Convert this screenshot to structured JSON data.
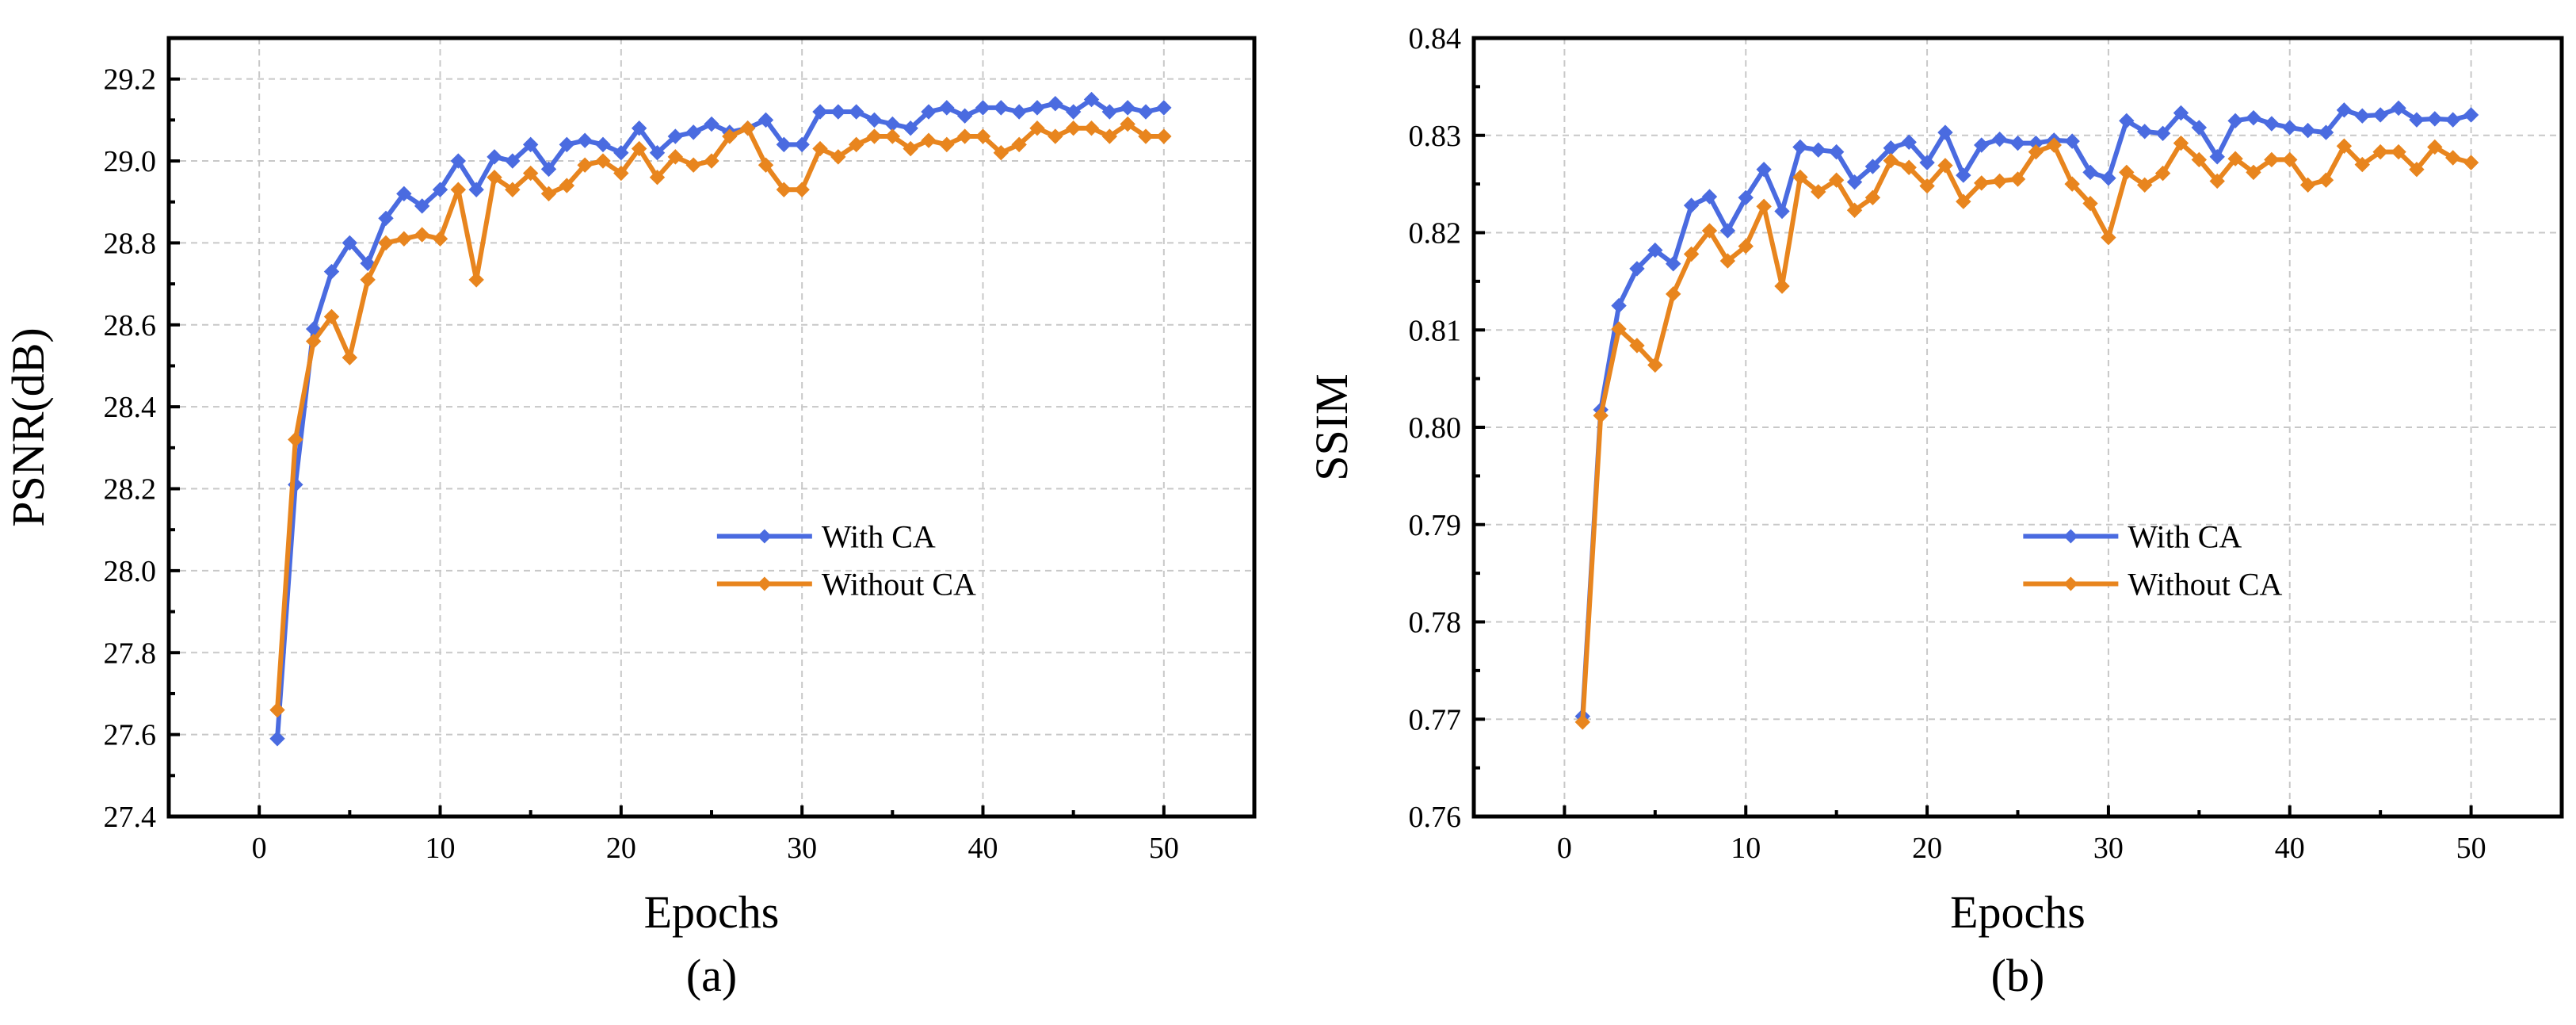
{
  "colors": {
    "with_ca": "#4a6be0",
    "without_ca": "#e8851e"
  },
  "chart_data": [
    {
      "type": "line",
      "id": "a",
      "caption": "(a)",
      "xlabel": "Epochs",
      "ylabel": "PSNR(dB)",
      "xlim": [
        -5,
        55
      ],
      "ylim": [
        27.4,
        29.3
      ],
      "xticks": [
        0,
        10,
        20,
        30,
        40,
        50
      ],
      "xtick_labels": [
        "0",
        "10",
        "20",
        "30",
        "40",
        "50"
      ],
      "yticks": [
        27.4,
        27.6,
        27.8,
        28.0,
        28.2,
        28.4,
        28.6,
        28.8,
        29.0,
        29.2
      ],
      "ytick_labels": [
        "27.4",
        "27.6",
        "27.8",
        "28.0",
        "28.2",
        "28.4",
        "28.6",
        "28.8",
        "29.0",
        "29.2"
      ],
      "yminor": [
        27.5,
        27.7,
        27.9,
        28.1,
        28.3,
        28.5,
        28.7,
        28.9,
        29.1,
        29.3
      ],
      "grid": true,
      "legend_position": "center-right",
      "x": [
        1,
        2,
        3,
        4,
        5,
        6,
        7,
        8,
        9,
        10,
        11,
        12,
        13,
        14,
        15,
        16,
        17,
        18,
        19,
        20,
        21,
        22,
        23,
        24,
        25,
        26,
        27,
        28,
        29,
        30,
        31,
        32,
        33,
        34,
        35,
        36,
        37,
        38,
        39,
        40,
        41,
        42,
        43,
        44,
        45,
        46,
        47,
        48,
        49,
        50
      ],
      "series": [
        {
          "name": "With CA",
          "color_key": "with_ca",
          "values": [
            27.59,
            28.21,
            28.59,
            28.73,
            28.8,
            28.75,
            28.86,
            28.92,
            28.89,
            28.93,
            29.0,
            28.93,
            29.01,
            29.0,
            29.04,
            28.98,
            29.04,
            29.05,
            29.04,
            29.02,
            29.08,
            29.02,
            29.06,
            29.07,
            29.09,
            29.07,
            29.08,
            29.1,
            29.04,
            29.04,
            29.12,
            29.12,
            29.12,
            29.1,
            29.09,
            29.08,
            29.12,
            29.13,
            29.11,
            29.13,
            29.13,
            29.12,
            29.13,
            29.14,
            29.12,
            29.15,
            29.12,
            29.13,
            29.12,
            29.13
          ]
        },
        {
          "name": "Without CA",
          "color_key": "without_ca",
          "values": [
            27.66,
            28.32,
            28.56,
            28.62,
            28.52,
            28.71,
            28.8,
            28.81,
            28.82,
            28.81,
            28.93,
            28.71,
            28.96,
            28.93,
            28.97,
            28.92,
            28.94,
            28.99,
            29.0,
            28.97,
            29.03,
            28.96,
            29.01,
            28.99,
            29.0,
            29.06,
            29.08,
            28.99,
            28.93,
            28.93,
            29.03,
            29.01,
            29.04,
            29.06,
            29.06,
            29.03,
            29.05,
            29.04,
            29.06,
            29.06,
            29.02,
            29.04,
            29.08,
            29.06,
            29.08,
            29.08,
            29.06,
            29.09,
            29.06,
            29.06
          ]
        }
      ]
    },
    {
      "type": "line",
      "id": "b",
      "caption": "(b)",
      "xlabel": "Epochs",
      "ylabel": "SSIM",
      "xlim": [
        -5,
        55
      ],
      "ylim": [
        0.76,
        0.84
      ],
      "xticks": [
        0,
        10,
        20,
        30,
        40,
        50
      ],
      "xtick_labels": [
        "0",
        "10",
        "20",
        "30",
        "40",
        "50"
      ],
      "yticks": [
        0.76,
        0.77,
        0.78,
        0.79,
        0.8,
        0.81,
        0.82,
        0.83,
        0.84
      ],
      "ytick_labels": [
        "0.76",
        "0.77",
        "0.78",
        "0.79",
        "0.80",
        "0.81",
        "0.82",
        "0.83",
        "0.84"
      ],
      "yminor": [
        0.765,
        0.775,
        0.785,
        0.795,
        0.805,
        0.815,
        0.825,
        0.835
      ],
      "grid": true,
      "legend_position": "center-right",
      "x": [
        1,
        2,
        3,
        4,
        5,
        6,
        7,
        8,
        9,
        10,
        11,
        12,
        13,
        14,
        15,
        16,
        17,
        18,
        19,
        20,
        21,
        22,
        23,
        24,
        25,
        26,
        27,
        28,
        29,
        30,
        31,
        32,
        33,
        34,
        35,
        36,
        37,
        38,
        39,
        40,
        41,
        42,
        43,
        44,
        45,
        46,
        47,
        48,
        49,
        50
      ],
      "series": [
        {
          "name": "With CA",
          "color_key": "with_ca",
          "values": [
            0.7703,
            0.8018,
            0.8125,
            0.8163,
            0.8182,
            0.8168,
            0.8228,
            0.8237,
            0.8202,
            0.8236,
            0.8265,
            0.8222,
            0.8288,
            0.8285,
            0.8283,
            0.8252,
            0.8268,
            0.8287,
            0.8293,
            0.8272,
            0.8303,
            0.8259,
            0.829,
            0.8296,
            0.8292,
            0.8292,
            0.8295,
            0.8294,
            0.8262,
            0.8256,
            0.8315,
            0.8304,
            0.8302,
            0.8323,
            0.8308,
            0.8278,
            0.8315,
            0.8318,
            0.8312,
            0.8308,
            0.8305,
            0.8303,
            0.8326,
            0.832,
            0.8321,
            0.8328,
            0.8316,
            0.8317,
            0.8316,
            0.8321
          ]
        },
        {
          "name": "Without CA",
          "color_key": "without_ca",
          "values": [
            0.7697,
            0.8012,
            0.8101,
            0.8084,
            0.8064,
            0.8137,
            0.8178,
            0.8202,
            0.8171,
            0.8186,
            0.8227,
            0.8145,
            0.8257,
            0.8242,
            0.8254,
            0.8223,
            0.8236,
            0.8274,
            0.8267,
            0.8248,
            0.8269,
            0.8232,
            0.8251,
            0.8253,
            0.8255,
            0.8283,
            0.829,
            0.825,
            0.823,
            0.8195,
            0.8262,
            0.8249,
            0.8261,
            0.8292,
            0.8275,
            0.8253,
            0.8276,
            0.8262,
            0.8275,
            0.8275,
            0.8249,
            0.8254,
            0.8289,
            0.827,
            0.8283,
            0.8283,
            0.8265,
            0.8288,
            0.8277,
            0.8272
          ]
        }
      ]
    }
  ]
}
